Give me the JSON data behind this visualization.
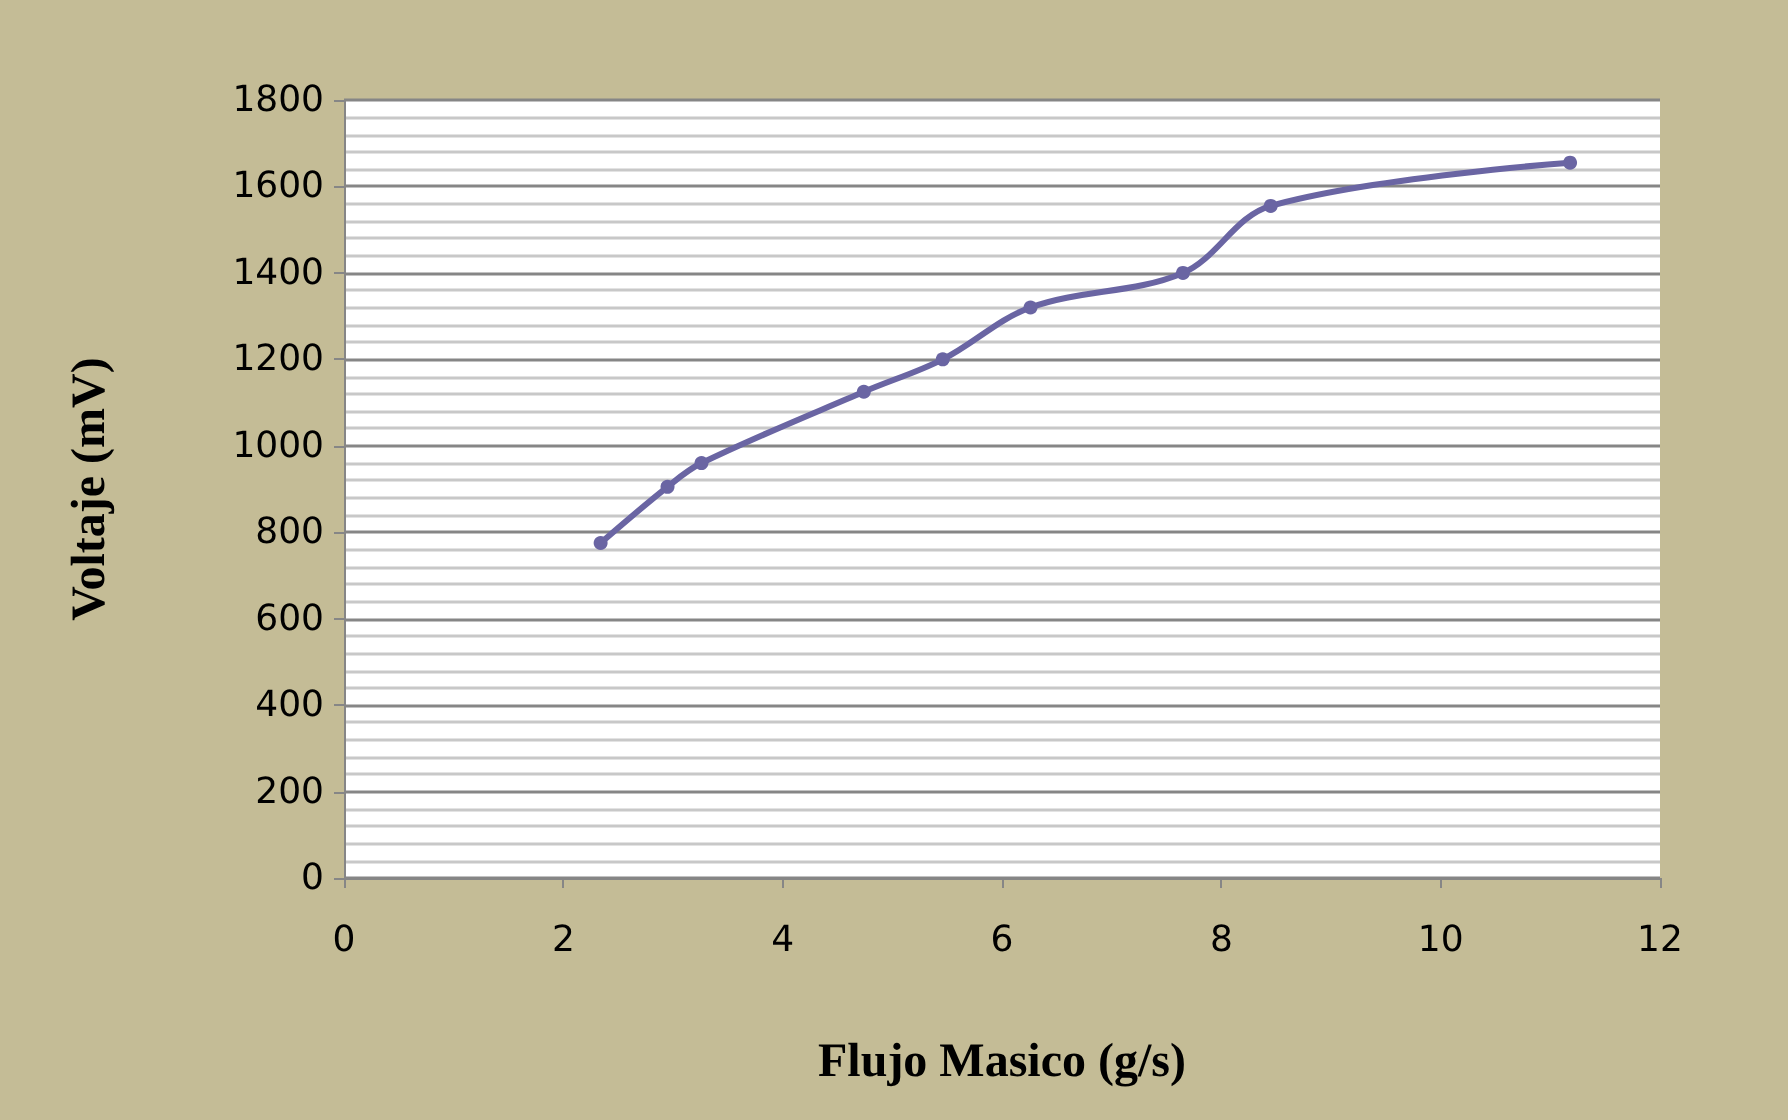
{
  "chart_data": {
    "type": "line",
    "xlabel": "Flujo Masico (g/s)",
    "ylabel": "Voltaje (mV)",
    "x": [
      2.34,
      2.95,
      3.26,
      4.74,
      5.46,
      6.26,
      7.65,
      8.45,
      11.18
    ],
    "series": [
      {
        "color": "#6a65a3",
        "values": [
          775,
          905,
          960,
          1125,
          1200,
          1320,
          1400,
          1555,
          1655
        ]
      }
    ],
    "xlim": [
      0,
      12
    ],
    "xticks": [
      0,
      2,
      4,
      6,
      8,
      10,
      12
    ],
    "ylim": [
      0,
      1800
    ],
    "yticks": [
      0,
      200,
      400,
      600,
      800,
      1000,
      1200,
      1400,
      1600,
      1800
    ],
    "grid": "y",
    "marker": "circle",
    "line_style": "solid"
  }
}
